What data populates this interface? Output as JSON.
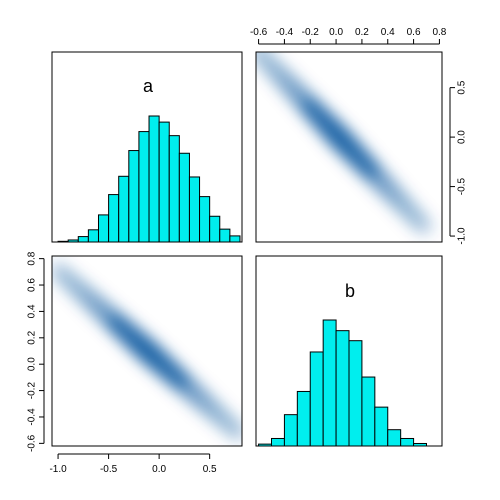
{
  "chart_data": {
    "type": "pairs",
    "colors": {
      "hist_fill": "#00EEEE",
      "hist_stroke": "#000000",
      "density": "#08519C"
    },
    "variables": [
      "a",
      "b"
    ],
    "panels": {
      "hist_a": {
        "type": "bar",
        "label": "a",
        "bin_edges": [
          -1.0,
          -0.9,
          -0.8,
          -0.7,
          -0.6,
          -0.5,
          -0.4,
          -0.3,
          -0.2,
          -0.1,
          0.0,
          0.1,
          0.2,
          0.3,
          0.4,
          0.5,
          0.6,
          0.7,
          0.8
        ],
        "counts": [
          1,
          3,
          8,
          18,
          40,
          70,
          97,
          135,
          163,
          186,
          177,
          157,
          131,
          96,
          67,
          38,
          19,
          9
        ]
      },
      "hist_b": {
        "type": "bar",
        "label": "b",
        "bin_edges": [
          -0.6,
          -0.5,
          -0.4,
          -0.3,
          -0.2,
          -0.1,
          0.0,
          0.1,
          0.2,
          0.3,
          0.4,
          0.5,
          0.6,
          0.7
        ],
        "counts": [
          3,
          12,
          50,
          87,
          150,
          201,
          184,
          168,
          110,
          62,
          26,
          12,
          4
        ]
      },
      "scatter_b_vs_a": {
        "type": "scatter",
        "x_var": "b",
        "y_var": "a",
        "xlim": [
          -0.62,
          0.82
        ],
        "ylim": [
          -1.06,
          0.86
        ],
        "x_ticks": [
          -0.6,
          -0.4,
          -0.2,
          0.0,
          0.2,
          0.4,
          0.6,
          0.8
        ],
        "x_tick_labels": [
          "-0.6",
          "-0.4",
          "-0.2",
          "0.0",
          "0.2",
          "0.4",
          "0.6",
          "0.8"
        ],
        "y_ticks": [
          0.5,
          0.0,
          -0.5,
          -1.0
        ],
        "y_tick_labels": [
          "0.5",
          "0.0",
          "-0.5",
          "-1.0"
        ],
        "relationship": "a = -1.37 * b + 0.03",
        "display": "smoothed density"
      },
      "scatter_a_vs_b": {
        "type": "scatter",
        "x_var": "a",
        "y_var": "b",
        "xlim": [
          -1.06,
          0.82
        ],
        "ylim": [
          -0.62,
          0.82
        ],
        "x_ticks": [
          -1.0,
          -0.5,
          0.0,
          0.5
        ],
        "x_tick_labels": [
          "-1.0",
          "-0.5",
          "0.0",
          "0.5"
        ],
        "y_ticks": [
          0.8,
          0.6,
          0.4,
          0.2,
          0.0,
          -0.2,
          -0.4,
          -0.6
        ],
        "y_tick_labels": [
          "0.8",
          "0.6",
          "0.4",
          "0.2",
          "0.0",
          "-0.2",
          "-0.4",
          "-0.6"
        ],
        "relationship": "b = -0.69 * a + 0.02",
        "display": "smoothed density"
      }
    },
    "grid": false
  }
}
